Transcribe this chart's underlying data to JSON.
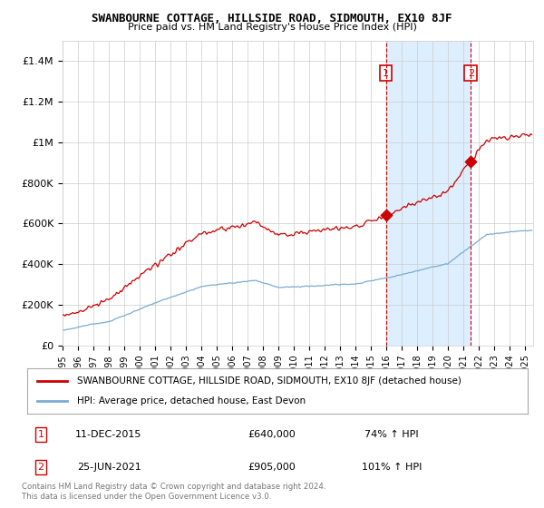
{
  "title": "SWANBOURNE COTTAGE, HILLSIDE ROAD, SIDMOUTH, EX10 8JF",
  "subtitle": "Price paid vs. HM Land Registry's House Price Index (HPI)",
  "red_label": "SWANBOURNE COTTAGE, HILLSIDE ROAD, SIDMOUTH, EX10 8JF (detached house)",
  "blue_label": "HPI: Average price, detached house, East Devon",
  "annotation1_date": "11-DEC-2015",
  "annotation1_price": "£640,000",
  "annotation1_hpi": "74% ↑ HPI",
  "annotation2_date": "25-JUN-2021",
  "annotation2_price": "£905,000",
  "annotation2_hpi": "101% ↑ HPI",
  "footer": "Contains HM Land Registry data © Crown copyright and database right 2024.\nThis data is licensed under the Open Government Licence v3.0.",
  "red_color": "#cc0000",
  "blue_color": "#7aadd4",
  "shade_color": "#ddeeff",
  "vline_color": "#cc0000",
  "background_color": "#ffffff",
  "grid_color": "#cccccc",
  "ylim": [
    0,
    1500000
  ],
  "yticks": [
    0,
    200000,
    400000,
    600000,
    800000,
    1000000,
    1200000,
    1400000
  ],
  "ytick_labels": [
    "£0",
    "£200K",
    "£400K",
    "£600K",
    "£800K",
    "£1M",
    "£1.2M",
    "£1.4M"
  ],
  "sale1_t": 2015.958,
  "sale2_t": 2021.458,
  "sale1_price": 640000,
  "sale2_price": 905000
}
